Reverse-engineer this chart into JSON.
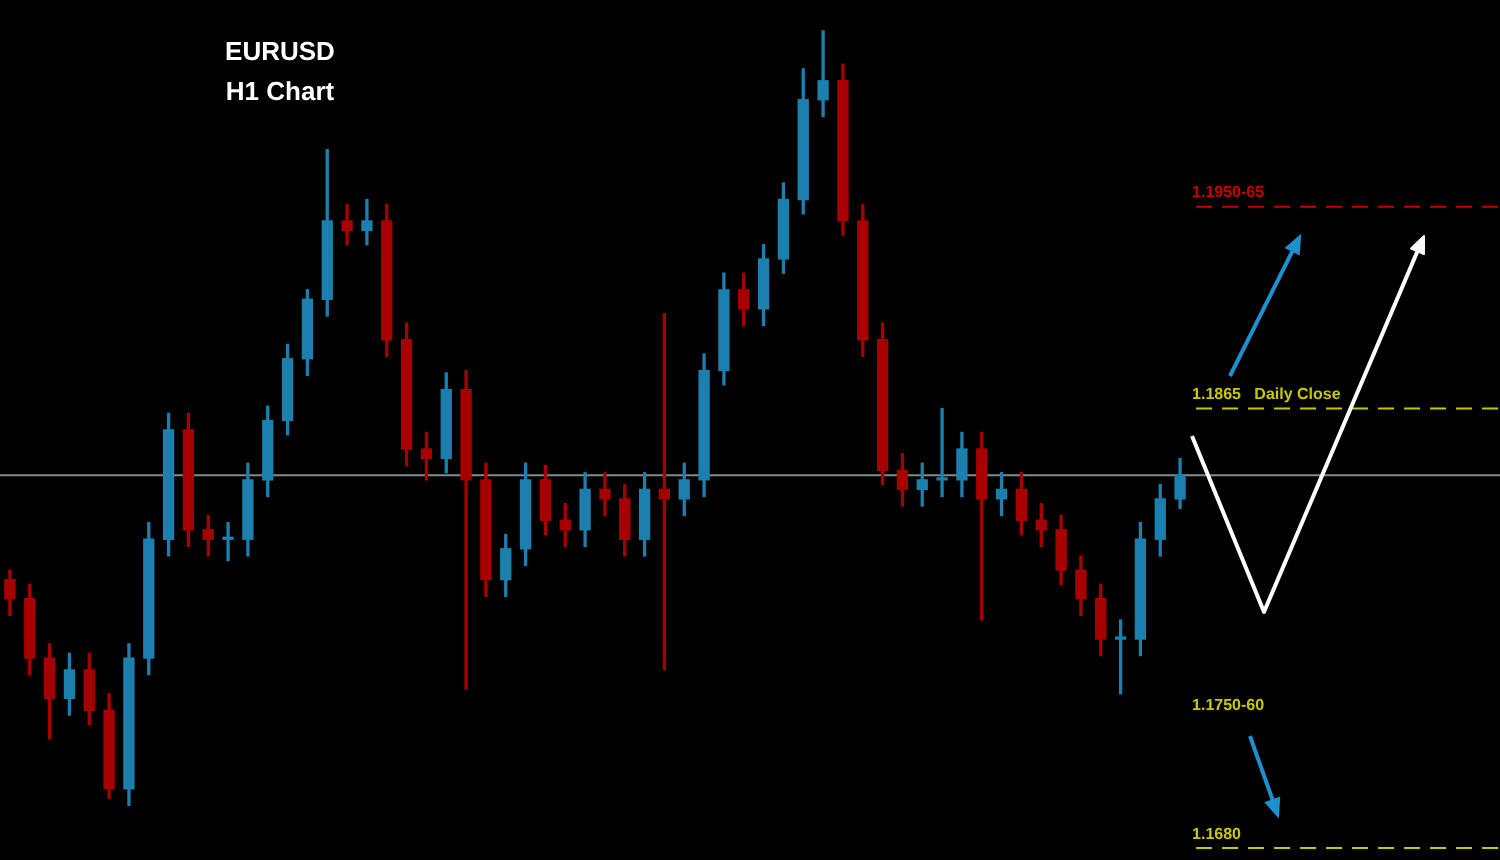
{
  "chart_data": {
    "type": "candlestick",
    "title": "EURUSD",
    "subtitle": "H1 Chart",
    "categories": [
      null,
      null,
      null,
      null,
      null,
      null,
      null,
      null,
      null,
      null,
      null,
      null,
      null,
      null,
      null,
      null,
      null,
      null,
      null,
      null,
      null,
      null,
      null,
      null,
      null,
      null,
      null,
      null,
      null,
      null,
      null,
      null,
      null,
      null,
      null,
      null,
      null,
      null,
      null,
      null,
      null,
      null,
      null,
      null,
      null,
      null,
      null,
      null,
      null,
      null,
      null,
      null,
      null,
      null,
      null,
      null,
      null,
      null,
      null,
      null
    ],
    "ohlc": [
      [
        1.1793,
        1.1797,
        1.1778,
        1.1785
      ],
      [
        1.1785,
        1.1791,
        1.1753,
        1.176
      ],
      [
        1.176,
        1.1766,
        1.1726,
        1.1743
      ],
      [
        1.1743,
        1.1762,
        1.1736,
        1.1755
      ],
      [
        1.1755,
        1.1762,
        1.1732,
        1.1738
      ],
      [
        1.1738,
        1.1745,
        1.1701,
        1.1705
      ],
      [
        1.1705,
        1.1766,
        1.1698,
        1.176
      ],
      [
        1.176,
        1.1817,
        1.1753,
        1.181
      ],
      [
        1.181,
        1.1863,
        1.1803,
        1.1856
      ],
      [
        1.1856,
        1.1863,
        1.1807,
        1.1814
      ],
      [
        1.1814,
        1.182,
        1.1803,
        1.181
      ],
      [
        1.181,
        1.1817,
        1.1801,
        1.181
      ],
      [
        1.181,
        1.1842,
        1.1803,
        1.1835
      ],
      [
        1.1835,
        1.1866,
        1.1828,
        1.186
      ],
      [
        1.186,
        1.1892,
        1.1854,
        1.1886
      ],
      [
        1.1886,
        1.1915,
        1.1879,
        1.1911
      ],
      [
        1.1911,
        1.1974,
        1.1904,
        1.1944
      ],
      [
        1.1944,
        1.1951,
        1.1934,
        1.194
      ],
      [
        1.194,
        1.1953,
        1.1934,
        1.1944
      ],
      [
        1.1944,
        1.1951,
        1.1887,
        1.1894
      ],
      [
        1.1894,
        1.1901,
        1.1841,
        1.1848
      ],
      [
        1.1848,
        1.1855,
        1.1835,
        1.1844
      ],
      [
        1.1844,
        1.188,
        1.1838,
        1.1873
      ],
      [
        1.1873,
        1.1881,
        1.1747,
        1.1835
      ],
      [
        1.1835,
        1.1842,
        1.1786,
        1.1793
      ],
      [
        1.1793,
        1.1812,
        1.1786,
        1.1806
      ],
      [
        1.1806,
        1.1842,
        1.1799,
        1.1835
      ],
      [
        1.1835,
        1.1841,
        1.1812,
        1.1818
      ],
      [
        1.1818,
        1.1825,
        1.1807,
        1.1814
      ],
      [
        1.1814,
        1.1838,
        1.1807,
        1.1831
      ],
      [
        1.1831,
        1.1838,
        1.182,
        1.1827
      ],
      [
        1.1827,
        1.1833,
        1.1803,
        1.181
      ],
      [
        1.181,
        1.1838,
        1.1803,
        1.1831
      ],
      [
        1.1831,
        1.1905,
        1.1755,
        1.1827
      ],
      [
        1.1827,
        1.1842,
        1.182,
        1.1835
      ],
      [
        1.1835,
        1.1888,
        1.1828,
        1.1881
      ],
      [
        1.1881,
        1.1922,
        1.1875,
        1.1915
      ],
      [
        1.1915,
        1.1922,
        1.19,
        1.1907
      ],
      [
        1.1907,
        1.1934,
        1.19,
        1.1928
      ],
      [
        1.1928,
        1.196,
        1.1922,
        1.1953
      ],
      [
        1.1953,
        1.2008,
        1.1947,
        1.1995
      ],
      [
        1.1995,
        1.2024,
        1.1988,
        1.2003
      ],
      [
        1.2003,
        1.201,
        1.1938,
        1.1944
      ],
      [
        1.1944,
        1.1951,
        1.1887,
        1.1894
      ],
      [
        1.1894,
        1.1901,
        1.1833,
        1.1839
      ],
      [
        1.1839,
        1.1846,
        1.1824,
        1.1831
      ],
      [
        1.1831,
        1.1842,
        1.1824,
        1.1835
      ],
      [
        1.1835,
        1.1865,
        1.1828,
        1.1835
      ],
      [
        1.1835,
        1.1855,
        1.1828,
        1.1848
      ],
      [
        1.1848,
        1.1855,
        1.1776,
        1.1827
      ],
      [
        1.1827,
        1.1838,
        1.182,
        1.1831
      ],
      [
        1.1831,
        1.1838,
        1.1812,
        1.1818
      ],
      [
        1.1818,
        1.1825,
        1.1807,
        1.1814
      ],
      [
        1.1814,
        1.182,
        1.1791,
        1.1797
      ],
      [
        1.1797,
        1.1803,
        1.1778,
        1.1785
      ],
      [
        1.1785,
        1.1791,
        1.1761,
        1.1768
      ],
      [
        1.1768,
        1.1776,
        1.1745,
        1.1768
      ],
      [
        1.1768,
        1.1817,
        1.1761,
        1.181
      ],
      [
        1.181,
        1.1833,
        1.1803,
        1.1827
      ],
      [
        1.1827,
        1.1844,
        1.1823,
        1.1837
      ]
    ],
    "colors": [
      "#a80000",
      "#a80000",
      "#a80000",
      "#1c7fae",
      "#a80000",
      "#a80000",
      "#1c7fae",
      "#1c7fae",
      "#1c7fae",
      "#a80000",
      "#a80000",
      "#1c7fae",
      "#1c7fae",
      "#1c7fae",
      "#1c7fae",
      "#1c7fae",
      "#1c7fae",
      "#a80000",
      "#1c7fae",
      "#a80000",
      "#a80000",
      "#a80000",
      "#1c7fae",
      "#a80000",
      "#a80000",
      "#1c7fae",
      "#1c7fae",
      "#a80000",
      "#a80000",
      "#1c7fae",
      "#a80000",
      "#a80000",
      "#1c7fae",
      "#a80000",
      "#1c7fae",
      "#1c7fae",
      "#1c7fae",
      "#a80000",
      "#1c7fae",
      "#1c7fae",
      "#1c7fae",
      "#1c7fae",
      "#a80000",
      "#a80000",
      "#a80000",
      "#a80000",
      "#1c7fae",
      "#1c7fae",
      "#1c7fae",
      "#a80000",
      "#1c7fae",
      "#a80000",
      "#a80000",
      "#a80000",
      "#a80000",
      "#a80000",
      "#1c7fae",
      "#1c7fae",
      "#1c7fae",
      "#1c7fae"
    ],
    "ylim": [
      1.1675,
      1.2037
    ],
    "tick_labels": false,
    "grid": false,
    "legend": false,
    "ref_lines": [
      {
        "axis": "y",
        "value": 1.1837,
        "color": "#7f8c8c",
        "line_style": "solid"
      },
      {
        "axis": "y",
        "value": 1.1865,
        "label": "1.1865   Daily Close",
        "color": "#c8c800",
        "line_style": "dashed"
      },
      {
        "axis": "y",
        "value": 1.195,
        "label": "1.1950-65",
        "color": "#c80000",
        "line_style": "dashed"
      },
      {
        "axis": "y",
        "value": 1.168,
        "label": "1.1680",
        "color": "#c8c800",
        "line_style": "dashed"
      }
    ],
    "annotations": [
      "1.1750-60"
    ]
  }
}
